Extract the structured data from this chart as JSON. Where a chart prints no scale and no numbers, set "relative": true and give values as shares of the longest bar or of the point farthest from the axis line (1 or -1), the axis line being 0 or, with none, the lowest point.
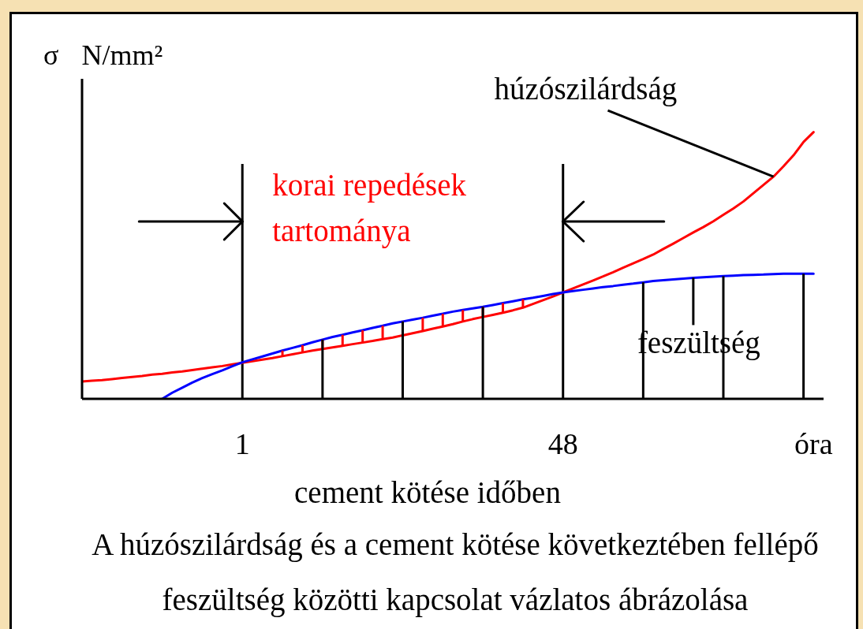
{
  "chart_data": {
    "type": "line",
    "relative": true,
    "ylabel": "σ N/mm²",
    "xlabel": "cement kötése időben",
    "categories": [
      null,
      null,
      null,
      null,
      null,
      null,
      null,
      null,
      null,
      null,
      null,
      null,
      null,
      null,
      null,
      null,
      "1",
      null,
      null,
      null,
      null,
      null,
      null,
      null,
      null,
      null,
      null,
      null,
      null,
      null,
      null,
      null,
      null,
      null,
      null,
      null,
      null,
      null,
      null,
      null,
      null,
      null,
      null,
      null,
      null,
      null,
      null,
      null,
      "48",
      null,
      null,
      null,
      null,
      null,
      null,
      null,
      null,
      null,
      null,
      null,
      null,
      null,
      null,
      null,
      null,
      null,
      null,
      null,
      null,
      null,
      null,
      null,
      null,
      "óra",
      null
    ],
    "series": [
      {
        "name": "húzószilárdság",
        "color": "#ff0000",
        "values": [
          0.065,
          0.068,
          0.07,
          0.074,
          0.078,
          0.082,
          0.086,
          0.091,
          0.094,
          0.099,
          0.103,
          0.108,
          0.113,
          0.118,
          0.123,
          0.129,
          0.135,
          0.141,
          0.147,
          0.153,
          0.16,
          0.167,
          0.174,
          0.181,
          0.187,
          0.193,
          0.199,
          0.205,
          0.211,
          0.217,
          0.224,
          0.23,
          0.238,
          0.246,
          0.254,
          0.263,
          0.271,
          0.28,
          0.29,
          0.299,
          0.307,
          0.315,
          0.323,
          0.332,
          0.342,
          0.356,
          0.37,
          0.384,
          0.399,
          0.414,
          0.429,
          0.444,
          0.459,
          0.475,
          0.492,
          0.508,
          0.524,
          0.541,
          0.562,
          0.582,
          0.603,
          0.624,
          0.644,
          0.666,
          0.69,
          0.714,
          0.74,
          0.771,
          0.802,
          0.833,
          0.872,
          0.913,
          0.963,
          1,
          null
        ]
      },
      {
        "name": "feszültség",
        "color": "#0000ff",
        "values": [
          null,
          null,
          null,
          null,
          null,
          null,
          null,
          null,
          0,
          0.023,
          0.042,
          0.061,
          0.078,
          0.093,
          0.107,
          0.122,
          0.137,
          0.148,
          0.159,
          0.17,
          0.181,
          0.191,
          0.201,
          0.212,
          0.222,
          0.232,
          0.24,
          0.249,
          0.257,
          0.266,
          0.274,
          0.283,
          0.29,
          0.297,
          0.304,
          0.312,
          0.319,
          0.327,
          0.333,
          0.339,
          0.345,
          0.352,
          0.359,
          0.366,
          0.373,
          0.379,
          0.386,
          0.393,
          0.399,
          0.404,
          0.409,
          0.414,
          0.419,
          0.423,
          0.428,
          0.432,
          0.437,
          0.442,
          0.445,
          0.448,
          0.451,
          0.454,
          0.456,
          0.458,
          0.46,
          0.462,
          0.464,
          0.465,
          0.466,
          0.468,
          0.469,
          0.469,
          0.469,
          0.469,
          null
        ]
      }
    ],
    "ref_lines": [
      {
        "axis": "x",
        "value": "1",
        "color": "#000000"
      },
      {
        "axis": "x",
        "value": "48",
        "color": "#000000"
      }
    ],
    "annotations": [
      "korai repedések tartománya",
      "A húzószilárdság és a cement kötése következtében fellépő feszültség közötti kapcsolat vázlatos ábrázolása"
    ]
  }
}
